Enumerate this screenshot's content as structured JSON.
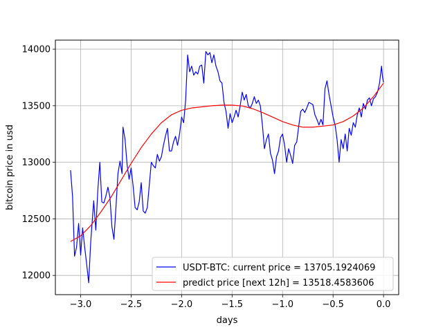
{
  "chart_data": {
    "type": "line",
    "xlabel": "days",
    "ylabel": "bitcoin price in usd",
    "xlim": [
      -3.25,
      0.15
    ],
    "ylim": [
      11830,
      14080
    ],
    "grid": true,
    "legend_position": "lower-right",
    "x_ticks": [
      -3.0,
      -2.5,
      -2.0,
      -1.5,
      -1.0,
      -0.5,
      0.0
    ],
    "x_tick_labels": [
      "−3.0",
      "−2.5",
      "−2.0",
      "−1.5",
      "−1.0",
      "−0.5",
      "0.0"
    ],
    "y_ticks": [
      12000,
      12500,
      13000,
      13500,
      14000
    ],
    "y_tick_labels": [
      "12000",
      "12500",
      "13000",
      "13500",
      "14000"
    ],
    "series": [
      {
        "name": "USDT-BTC: current price = 13705.1924069",
        "color": "#0000ff",
        "points": [
          [
            -3.1,
            12930
          ],
          [
            -3.08,
            12700
          ],
          [
            -3.06,
            12170
          ],
          [
            -3.04,
            12250
          ],
          [
            -3.02,
            12460
          ],
          [
            -3.0,
            12180
          ],
          [
            -2.98,
            12420
          ],
          [
            -2.96,
            12250
          ],
          [
            -2.94,
            12100
          ],
          [
            -2.92,
            11935
          ],
          [
            -2.9,
            12300
          ],
          [
            -2.87,
            12660
          ],
          [
            -2.85,
            12400
          ],
          [
            -2.83,
            12750
          ],
          [
            -2.81,
            13000
          ],
          [
            -2.79,
            12650
          ],
          [
            -2.77,
            12640
          ],
          [
            -2.75,
            12700
          ],
          [
            -2.73,
            12780
          ],
          [
            -2.71,
            12690
          ],
          [
            -2.69,
            12430
          ],
          [
            -2.67,
            12320
          ],
          [
            -2.65,
            12600
          ],
          [
            -2.63,
            12900
          ],
          [
            -2.61,
            13010
          ],
          [
            -2.59,
            12900
          ],
          [
            -2.58,
            13310
          ],
          [
            -2.56,
            13200
          ],
          [
            -2.54,
            12980
          ],
          [
            -2.52,
            12850
          ],
          [
            -2.5,
            12950
          ],
          [
            -2.48,
            12790
          ],
          [
            -2.46,
            12600
          ],
          [
            -2.44,
            12580
          ],
          [
            -2.42,
            12650
          ],
          [
            -2.4,
            12820
          ],
          [
            -2.38,
            12570
          ],
          [
            -2.36,
            12550
          ],
          [
            -2.34,
            12600
          ],
          [
            -2.32,
            12800
          ],
          [
            -2.3,
            13000
          ],
          [
            -2.28,
            12970
          ],
          [
            -2.26,
            12950
          ],
          [
            -2.24,
            13070
          ],
          [
            -2.22,
            13010
          ],
          [
            -2.2,
            13050
          ],
          [
            -2.18,
            13150
          ],
          [
            -2.16,
            13230
          ],
          [
            -2.14,
            13300
          ],
          [
            -2.12,
            13100
          ],
          [
            -2.1,
            13100
          ],
          [
            -2.08,
            13180
          ],
          [
            -2.06,
            13230
          ],
          [
            -2.04,
            13150
          ],
          [
            -2.02,
            13250
          ],
          [
            -2.0,
            13400
          ],
          [
            -1.98,
            13350
          ],
          [
            -1.96,
            13550
          ],
          [
            -1.94,
            13950
          ],
          [
            -1.92,
            13800
          ],
          [
            -1.9,
            13850
          ],
          [
            -1.88,
            13770
          ],
          [
            -1.86,
            13800
          ],
          [
            -1.84,
            13780
          ],
          [
            -1.82,
            13850
          ],
          [
            -1.8,
            13860
          ],
          [
            -1.78,
            13700
          ],
          [
            -1.76,
            13980
          ],
          [
            -1.74,
            13950
          ],
          [
            -1.72,
            13970
          ],
          [
            -1.7,
            13880
          ],
          [
            -1.68,
            13950
          ],
          [
            -1.66,
            13850
          ],
          [
            -1.64,
            13800
          ],
          [
            -1.62,
            13720
          ],
          [
            -1.6,
            13700
          ],
          [
            -1.58,
            13530
          ],
          [
            -1.56,
            13450
          ],
          [
            -1.54,
            13300
          ],
          [
            -1.52,
            13430
          ],
          [
            -1.5,
            13350
          ],
          [
            -1.48,
            13400
          ],
          [
            -1.46,
            13460
          ],
          [
            -1.44,
            13400
          ],
          [
            -1.42,
            13500
          ],
          [
            -1.4,
            13620
          ],
          [
            -1.38,
            13550
          ],
          [
            -1.36,
            13600
          ],
          [
            -1.34,
            13500
          ],
          [
            -1.32,
            13480
          ],
          [
            -1.3,
            13520
          ],
          [
            -1.28,
            13580
          ],
          [
            -1.26,
            13520
          ],
          [
            -1.24,
            13550
          ],
          [
            -1.22,
            13500
          ],
          [
            -1.2,
            13330
          ],
          [
            -1.18,
            13120
          ],
          [
            -1.16,
            13200
          ],
          [
            -1.14,
            13250
          ],
          [
            -1.12,
            13080
          ],
          [
            -1.1,
            13020
          ],
          [
            -1.08,
            12900
          ],
          [
            -1.06,
            13050
          ],
          [
            -1.04,
            13100
          ],
          [
            -1.02,
            13220
          ],
          [
            -1.0,
            13250
          ],
          [
            -0.98,
            13150
          ],
          [
            -0.96,
            13000
          ],
          [
            -0.94,
            13120
          ],
          [
            -0.92,
            13060
          ],
          [
            -0.9,
            12990
          ],
          [
            -0.88,
            13150
          ],
          [
            -0.86,
            13180
          ],
          [
            -0.84,
            13320
          ],
          [
            -0.82,
            13450
          ],
          [
            -0.8,
            13470
          ],
          [
            -0.78,
            13440
          ],
          [
            -0.76,
            13480
          ],
          [
            -0.74,
            13530
          ],
          [
            -0.72,
            13520
          ],
          [
            -0.7,
            13510
          ],
          [
            -0.68,
            13420
          ],
          [
            -0.66,
            13380
          ],
          [
            -0.64,
            13330
          ],
          [
            -0.62,
            13380
          ],
          [
            -0.6,
            13330
          ],
          [
            -0.58,
            13650
          ],
          [
            -0.56,
            13720
          ],
          [
            -0.54,
            13600
          ],
          [
            -0.52,
            13500
          ],
          [
            -0.5,
            13400
          ],
          [
            -0.48,
            13330
          ],
          [
            -0.46,
            13200
          ],
          [
            -0.44,
            13000
          ],
          [
            -0.42,
            13200
          ],
          [
            -0.4,
            13120
          ],
          [
            -0.38,
            13250
          ],
          [
            -0.36,
            13100
          ],
          [
            -0.34,
            13300
          ],
          [
            -0.32,
            13240
          ],
          [
            -0.3,
            13350
          ],
          [
            -0.28,
            13310
          ],
          [
            -0.26,
            13420
          ],
          [
            -0.24,
            13480
          ],
          [
            -0.22,
            13400
          ],
          [
            -0.2,
            13520
          ],
          [
            -0.18,
            13470
          ],
          [
            -0.16,
            13550
          ],
          [
            -0.14,
            13570
          ],
          [
            -0.12,
            13500
          ],
          [
            -0.1,
            13560
          ],
          [
            -0.08,
            13580
          ],
          [
            -0.06,
            13620
          ],
          [
            -0.04,
            13700
          ],
          [
            -0.02,
            13850
          ],
          [
            -0.01,
            13750
          ],
          [
            0.0,
            13705
          ]
        ]
      },
      {
        "name": "predict price [next 12h] = 13518.4583606",
        "color": "#ff0000",
        "points": [
          [
            -3.1,
            12300
          ],
          [
            -3.0,
            12350
          ],
          [
            -2.9,
            12440
          ],
          [
            -2.8,
            12560
          ],
          [
            -2.7,
            12690
          ],
          [
            -2.6,
            12840
          ],
          [
            -2.5,
            12990
          ],
          [
            -2.4,
            13130
          ],
          [
            -2.3,
            13250
          ],
          [
            -2.2,
            13350
          ],
          [
            -2.1,
            13420
          ],
          [
            -2.0,
            13460
          ],
          [
            -1.9,
            13480
          ],
          [
            -1.8,
            13490
          ],
          [
            -1.7,
            13500
          ],
          [
            -1.6,
            13505
          ],
          [
            -1.5,
            13505
          ],
          [
            -1.4,
            13498
          ],
          [
            -1.3,
            13475
          ],
          [
            -1.2,
            13440
          ],
          [
            -1.1,
            13400
          ],
          [
            -1.0,
            13360
          ],
          [
            -0.9,
            13330
          ],
          [
            -0.8,
            13310
          ],
          [
            -0.7,
            13310
          ],
          [
            -0.6,
            13320
          ],
          [
            -0.5,
            13330
          ],
          [
            -0.4,
            13360
          ],
          [
            -0.3,
            13410
          ],
          [
            -0.2,
            13480
          ],
          [
            -0.1,
            13580
          ],
          [
            0.0,
            13700
          ]
        ]
      }
    ]
  }
}
